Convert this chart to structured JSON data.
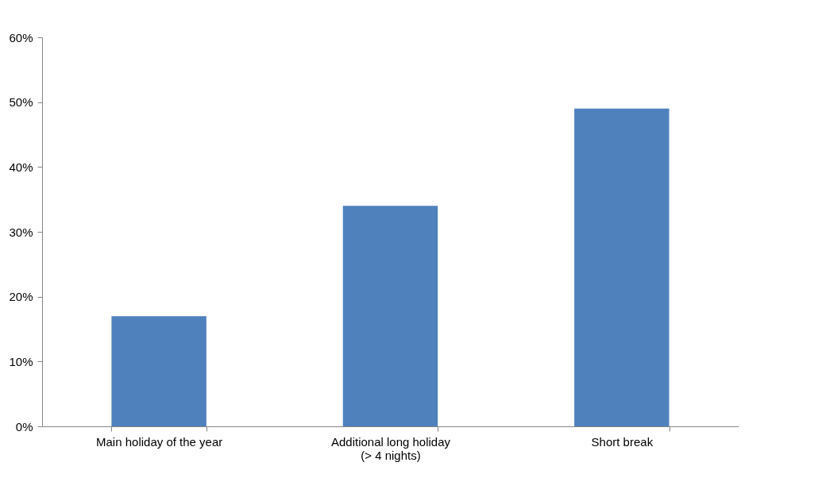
{
  "chart_data": {
    "type": "bar",
    "categories": [
      "Main holiday of the year",
      "Additional long holiday\n(> 4 nights)",
      "Short break"
    ],
    "values": [
      17,
      34,
      49
    ],
    "color": "#4f81bd",
    "ylim": [
      0,
      60
    ],
    "yticks": [
      {
        "value": 0,
        "label": "0%"
      },
      {
        "value": 10,
        "label": "10%"
      },
      {
        "value": 20,
        "label": "20%"
      },
      {
        "value": 30,
        "label": "30%"
      },
      {
        "value": 40,
        "label": "40%"
      },
      {
        "value": 50,
        "label": "50%"
      },
      {
        "value": 60,
        "label": "60%"
      }
    ],
    "grid": false
  }
}
